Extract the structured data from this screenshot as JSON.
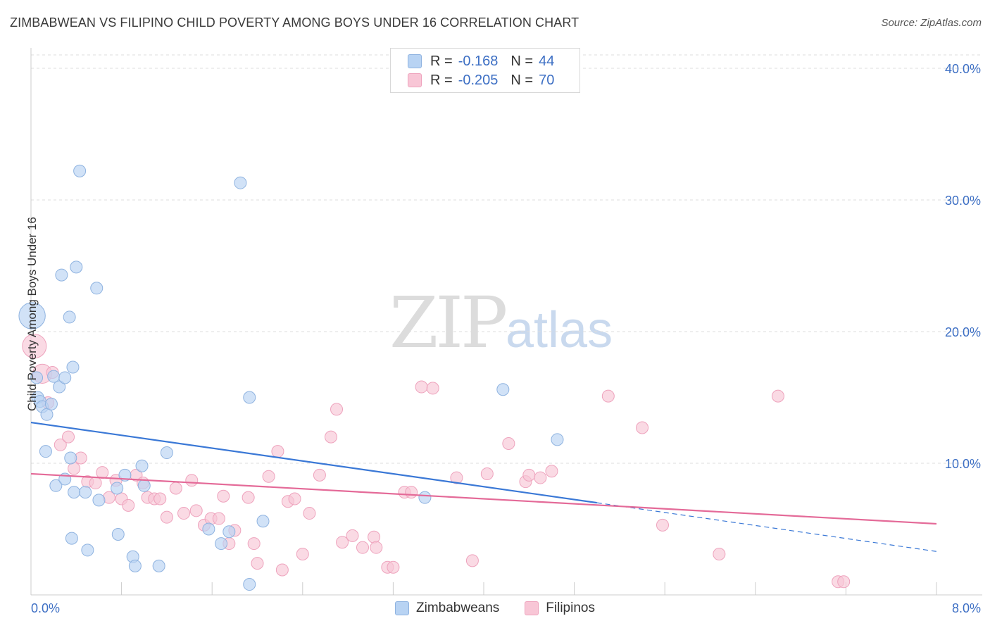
{
  "title": "ZIMBABWEAN VS FILIPINO CHILD POVERTY AMONG BOYS UNDER 16 CORRELATION CHART",
  "source": "Source: ZipAtlas.com",
  "watermark": {
    "zip": "ZIP",
    "atlas": "atlas"
  },
  "legend_top": {
    "rows": [
      {
        "r_label": "R =",
        "r_value": "-0.168",
        "n_label": "N =",
        "n_value": "44"
      },
      {
        "r_label": "R =",
        "r_value": "-0.205",
        "n_label": "N =",
        "n_value": "70"
      }
    ]
  },
  "colors": {
    "blue_fill": "#b8d3f3",
    "blue_stroke": "#8fb3e0",
    "blue_line": "#3a78d6",
    "pink_fill": "#f8c6d6",
    "pink_stroke": "#eea3bd",
    "pink_line": "#e46a98",
    "tick_text": "#3d6fc4",
    "grid": "#dddddd"
  },
  "chart_data": {
    "type": "scatter",
    "title": "ZIMBABWEAN VS FILIPINO CHILD POVERTY AMONG BOYS UNDER 16 CORRELATION CHART",
    "xlabel": "",
    "ylabel": "Child Poverty Among Boys Under 16",
    "xlim": [
      0,
      8
    ],
    "ylim": [
      0,
      42
    ],
    "x_tick_labels": [
      "0.0%",
      "8.0%"
    ],
    "y_ticks": [
      10,
      20,
      30,
      40
    ],
    "y_tick_labels": [
      "10.0%",
      "20.0%",
      "30.0%",
      "40.0%"
    ],
    "grid": true,
    "legend_position": "bottom",
    "series": [
      {
        "name": "Zimbabweans",
        "color": "#b8d3f3",
        "r": -0.168,
        "n": 44,
        "trend": {
          "x": [
            0.0,
            5.0
          ],
          "y": [
            13.1,
            7.0
          ],
          "dashed_to": [
            8.0,
            3.3
          ]
        },
        "points": [
          {
            "x": 0.01,
            "y": 21.2,
            "s": 2.2
          },
          {
            "x": 0.05,
            "y": 16.5
          },
          {
            "x": 0.06,
            "y": 15.0
          },
          {
            "x": 0.08,
            "y": 14.7
          },
          {
            "x": 0.1,
            "y": 14.3
          },
          {
            "x": 0.14,
            "y": 13.7
          },
          {
            "x": 0.18,
            "y": 14.5
          },
          {
            "x": 0.2,
            "y": 16.6
          },
          {
            "x": 0.25,
            "y": 15.8
          },
          {
            "x": 0.27,
            "y": 24.3
          },
          {
            "x": 0.3,
            "y": 16.5
          },
          {
            "x": 0.34,
            "y": 21.1
          },
          {
            "x": 0.37,
            "y": 17.3
          },
          {
            "x": 0.4,
            "y": 24.9
          },
          {
            "x": 0.43,
            "y": 32.2
          },
          {
            "x": 0.58,
            "y": 23.3
          },
          {
            "x": 0.13,
            "y": 10.9
          },
          {
            "x": 0.22,
            "y": 8.3
          },
          {
            "x": 0.3,
            "y": 8.8
          },
          {
            "x": 0.35,
            "y": 10.4
          },
          {
            "x": 0.38,
            "y": 7.8
          },
          {
            "x": 0.48,
            "y": 7.8
          },
          {
            "x": 0.6,
            "y": 7.2
          },
          {
            "x": 0.76,
            "y": 8.1
          },
          {
            "x": 0.83,
            "y": 9.1
          },
          {
            "x": 0.98,
            "y": 9.8
          },
          {
            "x": 1.0,
            "y": 8.3
          },
          {
            "x": 1.2,
            "y": 10.8
          },
          {
            "x": 0.36,
            "y": 4.3
          },
          {
            "x": 0.5,
            "y": 3.4
          },
          {
            "x": 0.77,
            "y": 4.6
          },
          {
            "x": 0.9,
            "y": 2.9
          },
          {
            "x": 0.92,
            "y": 2.2
          },
          {
            "x": 1.13,
            "y": 2.2
          },
          {
            "x": 1.57,
            "y": 5.0
          },
          {
            "x": 1.68,
            "y": 3.9
          },
          {
            "x": 1.75,
            "y": 4.8
          },
          {
            "x": 1.85,
            "y": 31.3
          },
          {
            "x": 1.93,
            "y": 15.0
          },
          {
            "x": 2.05,
            "y": 5.6
          },
          {
            "x": 1.93,
            "y": 0.8
          },
          {
            "x": 3.48,
            "y": 7.4
          },
          {
            "x": 4.17,
            "y": 15.6
          },
          {
            "x": 4.65,
            "y": 11.8
          }
        ]
      },
      {
        "name": "Filipinos",
        "color": "#f8c6d6",
        "r": -0.205,
        "n": 70,
        "trend": {
          "x": [
            0.0,
            8.0
          ],
          "y": [
            9.2,
            5.4
          ]
        },
        "points": [
          {
            "x": 0.03,
            "y": 18.9,
            "s": 2.0
          },
          {
            "x": 0.1,
            "y": 16.8,
            "s": 1.6
          },
          {
            "x": 0.15,
            "y": 14.6
          },
          {
            "x": 0.19,
            "y": 16.9
          },
          {
            "x": 0.26,
            "y": 11.4
          },
          {
            "x": 0.33,
            "y": 12.0
          },
          {
            "x": 0.38,
            "y": 9.6
          },
          {
            "x": 0.44,
            "y": 10.4
          },
          {
            "x": 0.5,
            "y": 8.6
          },
          {
            "x": 0.57,
            "y": 8.5
          },
          {
            "x": 0.63,
            "y": 9.3
          },
          {
            "x": 0.69,
            "y": 7.4
          },
          {
            "x": 0.75,
            "y": 8.7
          },
          {
            "x": 0.8,
            "y": 7.3
          },
          {
            "x": 0.86,
            "y": 6.8
          },
          {
            "x": 0.93,
            "y": 9.1
          },
          {
            "x": 0.99,
            "y": 8.5
          },
          {
            "x": 1.03,
            "y": 7.4
          },
          {
            "x": 1.09,
            "y": 7.3
          },
          {
            "x": 1.14,
            "y": 7.3
          },
          {
            "x": 1.2,
            "y": 5.9
          },
          {
            "x": 1.28,
            "y": 8.1
          },
          {
            "x": 1.35,
            "y": 6.2
          },
          {
            "x": 1.42,
            "y": 8.7
          },
          {
            "x": 1.46,
            "y": 6.4
          },
          {
            "x": 1.53,
            "y": 5.3
          },
          {
            "x": 1.59,
            "y": 5.8
          },
          {
            "x": 1.66,
            "y": 5.8
          },
          {
            "x": 1.7,
            "y": 7.5
          },
          {
            "x": 1.75,
            "y": 3.9
          },
          {
            "x": 1.8,
            "y": 4.9
          },
          {
            "x": 1.92,
            "y": 7.4
          },
          {
            "x": 1.97,
            "y": 3.9
          },
          {
            "x": 2.0,
            "y": 2.4
          },
          {
            "x": 2.1,
            "y": 9.0
          },
          {
            "x": 2.18,
            "y": 10.9
          },
          {
            "x": 2.22,
            "y": 1.9
          },
          {
            "x": 2.27,
            "y": 7.1
          },
          {
            "x": 2.33,
            "y": 7.3
          },
          {
            "x": 2.4,
            "y": 3.1
          },
          {
            "x": 2.46,
            "y": 6.2
          },
          {
            "x": 2.55,
            "y": 9.1
          },
          {
            "x": 2.65,
            "y": 12.0
          },
          {
            "x": 2.7,
            "y": 14.1
          },
          {
            "x": 2.75,
            "y": 4.0
          },
          {
            "x": 2.84,
            "y": 4.5
          },
          {
            "x": 2.93,
            "y": 3.6
          },
          {
            "x": 3.03,
            "y": 4.4
          },
          {
            "x": 3.05,
            "y": 3.6
          },
          {
            "x": 3.15,
            "y": 2.1
          },
          {
            "x": 3.2,
            "y": 2.1
          },
          {
            "x": 3.3,
            "y": 7.8
          },
          {
            "x": 3.36,
            "y": 7.8
          },
          {
            "x": 3.45,
            "y": 15.8
          },
          {
            "x": 3.55,
            "y": 15.7
          },
          {
            "x": 3.76,
            "y": 8.9
          },
          {
            "x": 3.9,
            "y": 2.6
          },
          {
            "x": 4.03,
            "y": 9.2
          },
          {
            "x": 4.22,
            "y": 11.5
          },
          {
            "x": 4.37,
            "y": 8.6
          },
          {
            "x": 4.4,
            "y": 9.1
          },
          {
            "x": 4.5,
            "y": 8.9
          },
          {
            "x": 4.6,
            "y": 9.4
          },
          {
            "x": 5.1,
            "y": 15.1
          },
          {
            "x": 5.4,
            "y": 12.7
          },
          {
            "x": 5.58,
            "y": 5.3
          },
          {
            "x": 6.08,
            "y": 3.1
          },
          {
            "x": 6.6,
            "y": 15.1
          },
          {
            "x": 7.13,
            "y": 1.0
          },
          {
            "x": 7.18,
            "y": 1.0
          }
        ]
      }
    ]
  }
}
